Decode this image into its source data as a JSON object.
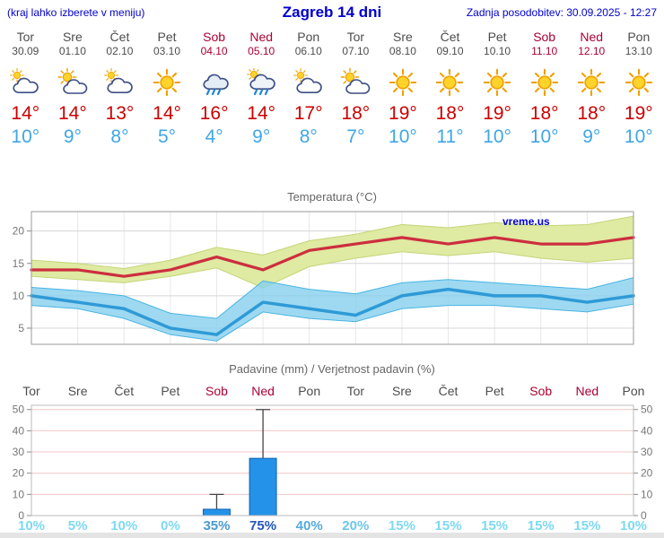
{
  "header": {
    "left_note": "(kraj lahko izberete v meniju)",
    "title": "Zagreb 14 dni",
    "updated": "Zadnja posodobitev: 30.09.2025 - 12:27"
  },
  "colors": {
    "link_blue": "#0000cc",
    "weekday_gray": "#4d4d4d",
    "weekend_red": "#aa0033",
    "high_red": "#cc0000",
    "low_blue": "#3fa6e6",
    "watermark_blue": "#0000cc",
    "grid_gray": "#d5d5d5",
    "grid_pink": "#f2c6c6"
  },
  "days": [
    {
      "name": "Tor",
      "date": "30.09",
      "weekend": false,
      "icon": "cloud-sun-icon",
      "high": "14°",
      "low": "10°"
    },
    {
      "name": "Sre",
      "date": "01.10",
      "weekend": false,
      "icon": "sun-cloud-icon",
      "high": "14°",
      "low": "9°"
    },
    {
      "name": "Čet",
      "date": "02.10",
      "weekend": false,
      "icon": "cloud-sun-icon",
      "high": "13°",
      "low": "8°"
    },
    {
      "name": "Pet",
      "date": "03.10",
      "weekend": false,
      "icon": "sun-icon",
      "high": "14°",
      "low": "5°"
    },
    {
      "name": "Sob",
      "date": "04.10",
      "weekend": true,
      "icon": "rain-cloud-icon",
      "high": "16°",
      "low": "4°"
    },
    {
      "name": "Ned",
      "date": "05.10",
      "weekend": true,
      "icon": "rain-sun-cloud-icon",
      "high": "14°",
      "low": "9°"
    },
    {
      "name": "Pon",
      "date": "06.10",
      "weekend": false,
      "icon": "cloud-sun-icon",
      "high": "17°",
      "low": "8°"
    },
    {
      "name": "Tor",
      "date": "07.10",
      "weekend": false,
      "icon": "sun-cloud-icon",
      "high": "18°",
      "low": "7°"
    },
    {
      "name": "Sre",
      "date": "08.10",
      "weekend": false,
      "icon": "sun-icon",
      "high": "19°",
      "low": "10°"
    },
    {
      "name": "Čet",
      "date": "09.10",
      "weekend": false,
      "icon": "sun-icon",
      "high": "18°",
      "low": "11°"
    },
    {
      "name": "Pet",
      "date": "10.10",
      "weekend": false,
      "icon": "sun-icon",
      "high": "19°",
      "low": "10°"
    },
    {
      "name": "Sob",
      "date": "11.10",
      "weekend": true,
      "icon": "sun-icon",
      "high": "18°",
      "low": "10°"
    },
    {
      "name": "Ned",
      "date": "12.10",
      "weekend": true,
      "icon": "sun-icon",
      "high": "18°",
      "low": "9°"
    },
    {
      "name": "Pon",
      "date": "13.10",
      "weekend": false,
      "icon": "sun-icon",
      "high": "19°",
      "low": "10°"
    }
  ],
  "chart_data": [
    {
      "type": "line",
      "title": "Temperatura (°C)",
      "watermark": "vreme.us",
      "x_labels": [
        "Tor",
        "Sre",
        "Čet",
        "Pet",
        "Sob",
        "Ned",
        "Pon",
        "Tor",
        "Sre",
        "Čet",
        "Pet",
        "Sob",
        "Ned",
        "Pon"
      ],
      "yticks": [
        5,
        10,
        15,
        20
      ],
      "ylim": [
        2.5,
        23
      ],
      "grid": true,
      "series": [
        {
          "name": "max-temperature",
          "color": "#cc2e3e",
          "width": 3.2,
          "values": [
            14,
            14,
            13,
            14,
            16,
            14,
            17,
            18,
            19,
            18,
            19,
            18,
            18,
            19
          ]
        },
        {
          "name": "min-temperature",
          "color": "#2f9ad6",
          "width": 3.5,
          "values": [
            10,
            9,
            8,
            5,
            4,
            9,
            8,
            7,
            10,
            11,
            10,
            10,
            9,
            10
          ]
        }
      ],
      "bands": [
        {
          "name": "max-range",
          "color": "#dfeaa2",
          "edge": "#c2d678",
          "opacity": 1,
          "upper": [
            15.5,
            15,
            14.2,
            15.5,
            17.5,
            16.3,
            18.5,
            19.5,
            21,
            20.5,
            21.3,
            20.8,
            21,
            22.3
          ],
          "lower": [
            13,
            12.5,
            12,
            13,
            14.3,
            11.2,
            14.5,
            15.8,
            16.8,
            16.2,
            16.8,
            15.8,
            15.2,
            15.8
          ]
        },
        {
          "name": "min-range",
          "color": "#86d0ee",
          "edge": "#49b4e4",
          "opacity": 0.8,
          "upper": [
            11.3,
            10.8,
            10,
            7.3,
            6.5,
            12.3,
            11,
            10.3,
            12,
            12.5,
            12,
            11.5,
            11,
            12.8
          ],
          "lower": [
            8.5,
            8,
            6.5,
            4,
            3,
            7.5,
            6.5,
            6,
            8,
            8.5,
            8.5,
            8,
            7.5,
            8.7
          ]
        }
      ]
    },
    {
      "type": "bar",
      "title": "Padavine (mm) / Verjetnost padavin (%)",
      "categories": [
        "Tor",
        "Sre",
        "Čet",
        "Pet",
        "Sob",
        "Ned",
        "Pon",
        "Tor",
        "Sre",
        "Čet",
        "Pet",
        "Sob",
        "Ned",
        "Pon"
      ],
      "weekend_indices": [
        4,
        5,
        11,
        12
      ],
      "yticks": [
        0,
        10,
        20,
        30,
        40,
        50
      ],
      "ylim": [
        0,
        52
      ],
      "values": [
        0,
        0,
        0,
        0,
        3,
        27,
        0,
        0,
        0,
        0,
        0,
        0,
        0,
        0
      ],
      "range_max": [
        0,
        0,
        0,
        0,
        10,
        50,
        0,
        0,
        0,
        0,
        0,
        0,
        0,
        0
      ],
      "bar_color": "#2492e8",
      "bar_edge": "#1263ae",
      "probabilities": [
        "10%",
        "5%",
        "10%",
        "0%",
        "35%",
        "75%",
        "40%",
        "20%",
        "15%",
        "15%",
        "15%",
        "15%",
        "15%",
        "10%"
      ],
      "prob_colors": [
        "#7dd9f2",
        "#7dd9f2",
        "#7dd9f2",
        "#7dd9f2",
        "#4a9ad0",
        "#2255bb",
        "#55aadd",
        "#6ec6ea",
        "#7dd9f2",
        "#7dd9f2",
        "#7dd9f2",
        "#7dd9f2",
        "#7dd9f2",
        "#7dd9f2"
      ]
    }
  ]
}
